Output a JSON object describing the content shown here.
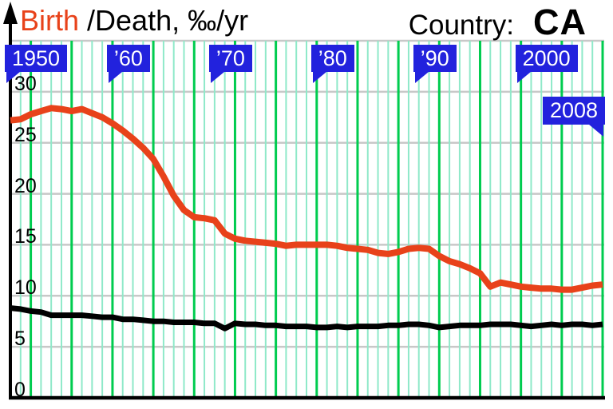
{
  "title": {
    "birth_label": "Birth",
    "rest_label": "/Death, ‰/yr"
  },
  "country": {
    "label": "Country:",
    "code": "CA"
  },
  "y_axis": {
    "ticks": [
      0,
      5,
      10,
      15,
      20,
      25,
      30
    ]
  },
  "flags": [
    {
      "label": "1950",
      "year": 1950,
      "tail": "left"
    },
    {
      "label": "’60",
      "year": 1960,
      "tail": "left"
    },
    {
      "label": "’70",
      "year": 1970,
      "tail": "left"
    },
    {
      "label": "’80",
      "year": 1980,
      "tail": "left"
    },
    {
      "label": "’90",
      "year": 1990,
      "tail": "left"
    },
    {
      "label": "2000",
      "year": 2000,
      "tail": "left"
    },
    {
      "label": "2008",
      "year": 2008,
      "tail": "right"
    }
  ],
  "colors": {
    "birth_line": "#e8421a",
    "death_line": "#000000",
    "flag_blue": "#2222dd",
    "grid_vertical_major": "#00cc4f",
    "grid_vertical_minor": "#8fe9c9",
    "grid_horizontal": "#c8c8c8",
    "axis": "#000000"
  },
  "chart_data": {
    "type": "line",
    "title": "Birth /Death, ‰/yr",
    "country": "CA",
    "xlim": [
      1950,
      2008
    ],
    "ylim": [
      0,
      35
    ],
    "y_ticks": [
      0,
      5,
      10,
      15,
      20,
      25,
      30
    ],
    "x_flags": [
      "1950",
      "’60",
      "’70",
      "’80",
      "’90",
      "2000",
      "2008"
    ],
    "grid": {
      "horizontal_every": 5,
      "vertical_minor_every_years": 1,
      "vertical_major_rule": "years divisible by 4"
    },
    "legend_position": "title-inline (Birth red, Death black)",
    "x": [
      1950,
      1951,
      1952,
      1953,
      1954,
      1955,
      1956,
      1957,
      1958,
      1959,
      1960,
      1961,
      1962,
      1963,
      1964,
      1965,
      1966,
      1967,
      1968,
      1969,
      1970,
      1971,
      1972,
      1973,
      1974,
      1975,
      1976,
      1977,
      1978,
      1979,
      1980,
      1981,
      1982,
      1983,
      1984,
      1985,
      1986,
      1987,
      1988,
      1989,
      1990,
      1991,
      1992,
      1993,
      1994,
      1995,
      1996,
      1997,
      1998,
      1999,
      2000,
      2001,
      2002,
      2003,
      2004,
      2005,
      2006,
      2007,
      2008
    ],
    "series": [
      {
        "name": "Birth rate",
        "color": "#e8421a",
        "values": [
          27.2,
          27.3,
          27.8,
          28.1,
          28.4,
          28.3,
          28.1,
          28.3,
          27.9,
          27.5,
          26.9,
          26.2,
          25.4,
          24.5,
          23.4,
          21.7,
          19.8,
          18.4,
          17.7,
          17.6,
          17.4,
          16.1,
          15.6,
          15.4,
          15.3,
          15.2,
          15.1,
          14.9,
          15.0,
          15.0,
          15.0,
          15.0,
          14.9,
          14.7,
          14.6,
          14.5,
          14.2,
          14.1,
          14.3,
          14.6,
          14.7,
          14.6,
          13.9,
          13.4,
          13.1,
          12.7,
          12.2,
          10.9,
          11.3,
          11.1,
          10.9,
          10.8,
          10.7,
          10.7,
          10.6,
          10.6,
          10.8,
          11.0,
          11.1
        ]
      },
      {
        "name": "Death rate",
        "color": "#000000",
        "values": [
          8.8,
          8.7,
          8.5,
          8.4,
          8.1,
          8.1,
          8.1,
          8.1,
          8.0,
          7.9,
          7.9,
          7.7,
          7.7,
          7.6,
          7.5,
          7.5,
          7.4,
          7.4,
          7.4,
          7.3,
          7.3,
          6.8,
          7.3,
          7.2,
          7.2,
          7.1,
          7.1,
          7.0,
          7.0,
          7.0,
          6.9,
          6.9,
          7.0,
          6.9,
          7.0,
          7.0,
          7.0,
          7.1,
          7.1,
          7.2,
          7.2,
          7.1,
          6.9,
          7.0,
          7.1,
          7.1,
          7.1,
          7.2,
          7.2,
          7.2,
          7.1,
          7.0,
          7.1,
          7.2,
          7.1,
          7.2,
          7.2,
          7.1,
          7.2
        ]
      }
    ]
  }
}
